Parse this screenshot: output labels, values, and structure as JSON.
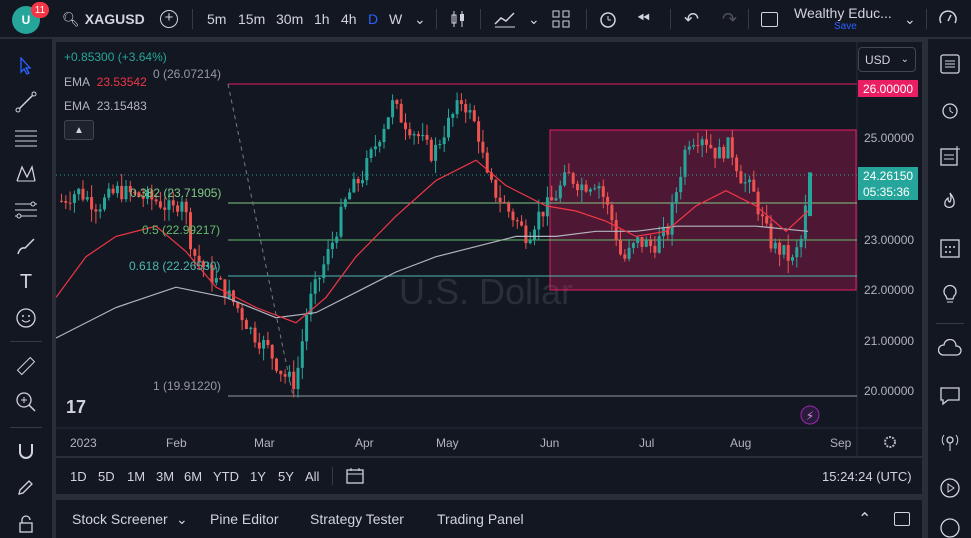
{
  "topbar": {
    "notification_count": "11",
    "symbol": "XAGUSD",
    "intervals": [
      "5m",
      "15m",
      "30m",
      "1h",
      "4h",
      "D",
      "W"
    ],
    "active_interval": "D",
    "layout_name": "Wealthy Educ...",
    "save_label": "Save"
  },
  "legend": {
    "change": "+0.85300 (+3.64%)",
    "ema1_label": "EMA",
    "ema1_value": "23.53542",
    "ema2_label": "EMA",
    "ema2_value": "23.15483"
  },
  "fib_labels": {
    "l0": "0 (26.07214)",
    "l382": "0.382 (23.71905)",
    "l5": "0.5 (22.99217)",
    "l618": "0.618 (22.26530)",
    "l1": "1 (19.91220)"
  },
  "price_axis": {
    "currency": "USD",
    "ticks": [
      "25.00000",
      "23.00000",
      "22.00000",
      "21.00000",
      "20.00000"
    ],
    "top_tag": "26.00000",
    "current_price": "24.26150",
    "countdown": "05:35:36"
  },
  "time_axis": {
    "labels": [
      "2023",
      "Feb",
      "Mar",
      "Apr",
      "May",
      "Jun",
      "Jul",
      "Aug",
      "Sep"
    ]
  },
  "watermark": "U.S. Dollar",
  "ranges": [
    "1D",
    "5D",
    "1M",
    "3M",
    "6M",
    "YTD",
    "1Y",
    "5Y",
    "All"
  ],
  "clock": "15:24:24 (UTC)",
  "bottom_tabs": [
    "Stock Screener",
    "Pine Editor",
    "Strategy Tester",
    "Trading Panel"
  ],
  "colors": {
    "up": "#26a69a",
    "down": "#ef5350",
    "current_price_tag": "#26a69a",
    "top_tag": "#e91e63",
    "ema_fast": "#f23645",
    "ema_slow": "#9598a1",
    "accent": "#2962ff"
  }
}
